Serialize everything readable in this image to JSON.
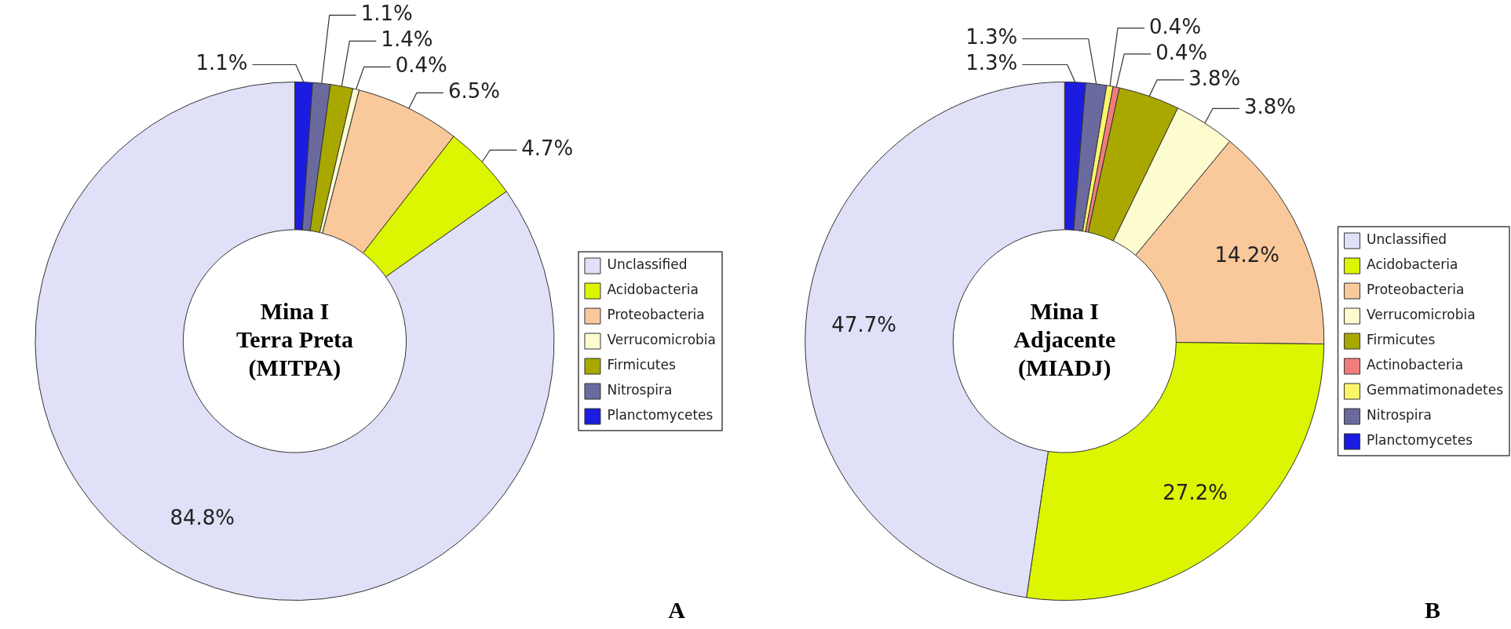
{
  "chart_data": [
    {
      "type": "donut",
      "title": "Mina I\nTerra Preta\n(MITPA)",
      "categories": [
        "Unclassified",
        "Acidobacteria",
        "Proteobacteria",
        "Verrucomicrobia",
        "Firmicutes",
        "Nitrospira",
        "Planctomycetes"
      ],
      "values": [
        84.8,
        4.7,
        6.5,
        0.4,
        1.4,
        1.1,
        1.1
      ],
      "value_labels": [
        "84.8%",
        "4.7%",
        "6.5%",
        "0.4%",
        "1.4%",
        "1.1%",
        "1.1%"
      ],
      "colors": [
        "#e0e0f8",
        "#dcf500",
        "#f9c89b",
        "#fdfccf",
        "#a8a800",
        "#6a6a9e",
        "#1c1ce0"
      ],
      "legend": "right",
      "annotations": [
        "A"
      ]
    },
    {
      "type": "donut",
      "title": "Mina I\nAdjacente\n(MIADJ)",
      "categories": [
        "Unclassified",
        "Acidobacteria",
        "Proteobacteria",
        "Verrucomicrobia",
        "Firmicutes",
        "Actinobacteria",
        "Gemmatimonadetes",
        "Nitrospira",
        "Planctomycetes"
      ],
      "values": [
        47.7,
        27.2,
        14.2,
        3.8,
        3.8,
        0.4,
        0.4,
        1.3,
        1.3
      ],
      "value_labels": [
        "47.7%",
        "27.2%",
        "14.2%",
        "3.8%",
        "3.8%",
        "0.4%",
        "0.4%",
        "1.3%",
        "1.3%"
      ],
      "colors": [
        "#e0e0f8",
        "#dcf500",
        "#f9c89b",
        "#fdfccf",
        "#a8a800",
        "#f27c7c",
        "#fbf56a",
        "#6a6a9e",
        "#1c1ce0"
      ],
      "legend": "right",
      "annotations": [
        "B"
      ]
    }
  ]
}
